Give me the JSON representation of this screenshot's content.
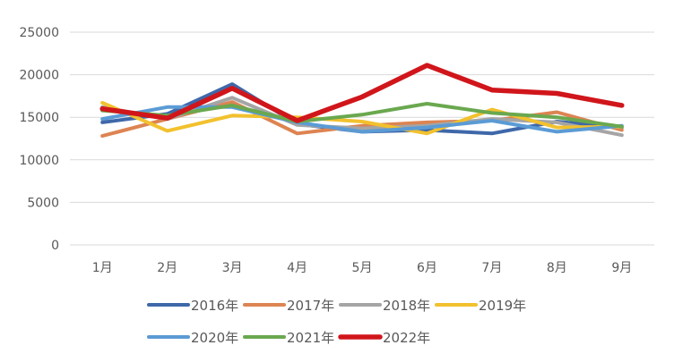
{
  "chart_data": {
    "type": "line",
    "title": "",
    "xlabel": "",
    "ylabel": "",
    "categories": [
      "1月",
      "2月",
      "3月",
      "4月",
      "5月",
      "6月",
      "7月",
      "8月",
      "9月"
    ],
    "ylim": [
      0,
      25000
    ],
    "yticks": [
      0,
      5000,
      10000,
      15000,
      20000,
      25000
    ],
    "grid": true,
    "legend_position": "bottom",
    "series": [
      {
        "name": "2016年",
        "color": "#3f68a9",
        "values": [
          14400,
          15400,
          18900,
          14200,
          13300,
          13500,
          13100,
          14500,
          13800
        ]
      },
      {
        "name": "2017年",
        "color": "#dd8452",
        "values": [
          12800,
          14800,
          16800,
          13100,
          14000,
          14400,
          14600,
          15600,
          13500
        ]
      },
      {
        "name": "2018年",
        "color": "#a5a5a5",
        "values": [
          16200,
          14800,
          17300,
          14100,
          13700,
          14000,
          14800,
          14400,
          12900
        ]
      },
      {
        "name": "2019年",
        "color": "#f2c12e",
        "values": [
          16700,
          13400,
          15200,
          15000,
          14500,
          13100,
          15900,
          13800,
          13900
        ]
      },
      {
        "name": "2020年",
        "color": "#5b9bd5",
        "values": [
          14800,
          16200,
          16200,
          14400,
          13300,
          13800,
          14600,
          13300,
          14000
        ]
      },
      {
        "name": "2021年",
        "color": "#6aa84f",
        "values": [
          15800,
          15200,
          16400,
          14500,
          15300,
          16600,
          15500,
          15000,
          13900
        ]
      },
      {
        "name": "2022年",
        "color": "#d0161b",
        "values": [
          16000,
          14900,
          18400,
          14600,
          17400,
          21100,
          18200,
          17800,
          16400
        ]
      }
    ]
  }
}
